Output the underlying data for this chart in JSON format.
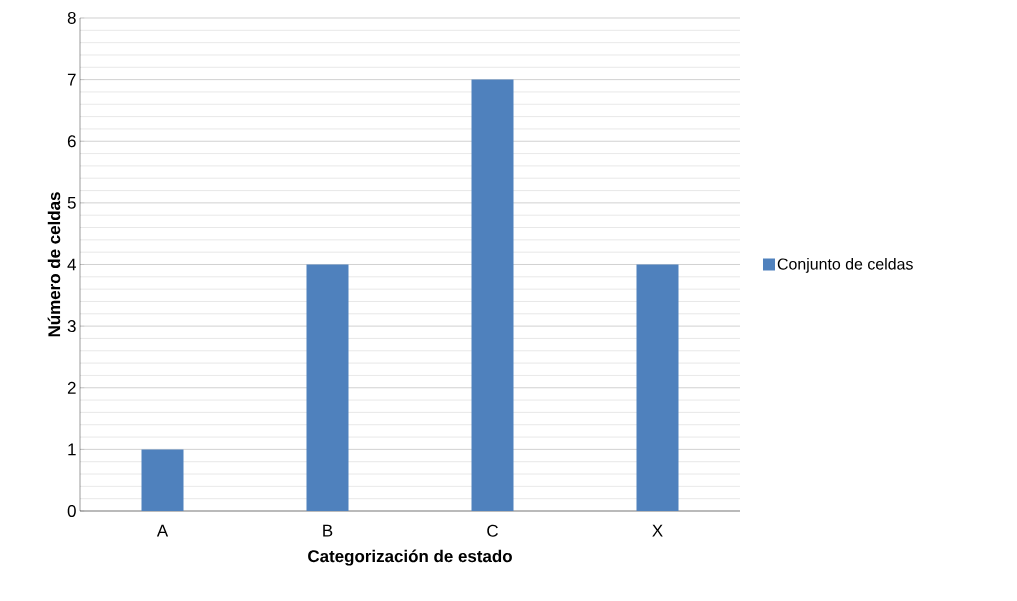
{
  "chart_data": {
    "type": "bar",
    "xlabel": "Categorización  de estado",
    "ylabel": "Número de celdas",
    "categories": [
      "A",
      "B",
      "C",
      "X"
    ],
    "series": [
      {
        "name": "Conjunto de celdas",
        "color": "#4f81bd",
        "values": [
          1,
          4,
          7,
          4
        ]
      }
    ],
    "ylim": [
      0,
      8
    ],
    "yticks": [
      0,
      1,
      2,
      3,
      4,
      5,
      6,
      7,
      8
    ],
    "grid": "y",
    "legend": "right"
  }
}
